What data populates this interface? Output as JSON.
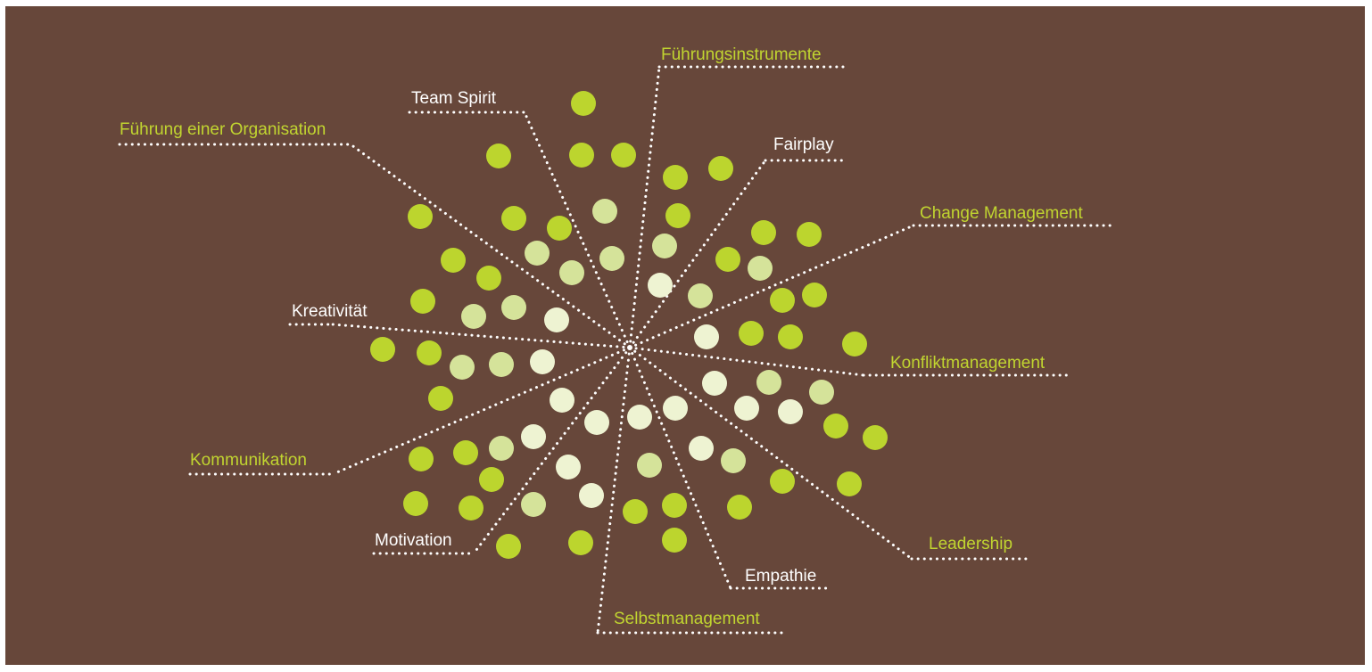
{
  "colors": {
    "background": "#67473a",
    "frame": "#ffffff",
    "label_green": "#c1d530",
    "label_white": "#ffffff",
    "dotted_line": "#ffffff",
    "dot_green": "#bcd52e",
    "dot_light_green": "#d5e39a",
    "dot_pale": "#eef3d2"
  },
  "diagram": {
    "labels": [
      {
        "key": "fuehrungsinstrumente",
        "text": "Führungsinstrumente",
        "style": "green"
      },
      {
        "key": "team_spirit",
        "text": "Team Spirit",
        "style": "white"
      },
      {
        "key": "fuehrung_einer_organisation",
        "text": "Führung einer Organisation",
        "style": "green"
      },
      {
        "key": "fairplay",
        "text": "Fairplay",
        "style": "white"
      },
      {
        "key": "change_management",
        "text": "Change Management",
        "style": "green"
      },
      {
        "key": "kreativitaet",
        "text": "Kreativität",
        "style": "white"
      },
      {
        "key": "konfliktmanagement",
        "text": "Konfliktmanagement",
        "style": "green"
      },
      {
        "key": "kommunikation",
        "text": "Kommunikation",
        "style": "green"
      },
      {
        "key": "leadership",
        "text": "Leadership",
        "style": "green"
      },
      {
        "key": "motivation",
        "text": "Motivation",
        "style": "white"
      },
      {
        "key": "empathie",
        "text": "Empathie",
        "style": "white"
      },
      {
        "key": "selbstmanagement",
        "text": "Selbstmanagement",
        "style": "green"
      }
    ]
  }
}
